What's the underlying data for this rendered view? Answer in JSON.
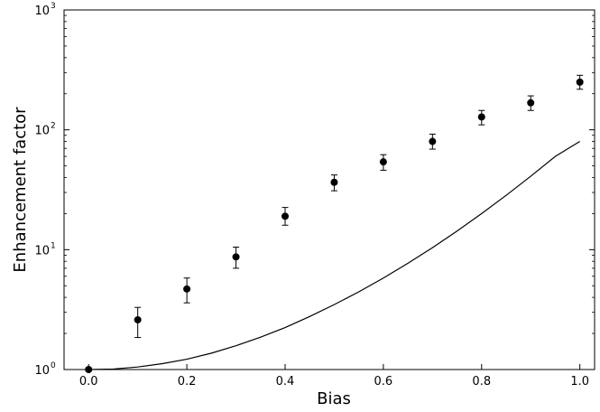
{
  "chart_data": {
    "type": "scatter",
    "title": "",
    "xlabel": "Bias",
    "ylabel": "Enhancement factor",
    "xlim": [
      -0.05,
      1.03
    ],
    "ylim": [
      1,
      1000
    ],
    "yscale": "log",
    "grid": false,
    "x_ticks": [
      {
        "value": 0.0,
        "label": "0.0"
      },
      {
        "value": 0.2,
        "label": "0.2"
      },
      {
        "value": 0.4,
        "label": "0.4"
      },
      {
        "value": 0.6,
        "label": "0.6"
      },
      {
        "value": 0.8,
        "label": "0.8"
      },
      {
        "value": 1.0,
        "label": "1.0"
      }
    ],
    "y_ticks": [
      {
        "value": 1,
        "base": "10",
        "exponent": "0"
      },
      {
        "value": 10,
        "base": "10",
        "exponent": "1"
      },
      {
        "value": 100,
        "base": "10",
        "exponent": "2"
      },
      {
        "value": 1000,
        "base": "10",
        "exponent": "3"
      }
    ],
    "series": [
      {
        "type": "scatter",
        "color": "#000000",
        "points": [
          {
            "x": 0.0,
            "y": 1.0,
            "lo": 1.0,
            "hi": 1.0
          },
          {
            "x": 0.1,
            "y": 2.6,
            "lo": 1.85,
            "hi": 3.3
          },
          {
            "x": 0.2,
            "y": 4.7,
            "lo": 3.6,
            "hi": 5.8
          },
          {
            "x": 0.3,
            "y": 8.7,
            "lo": 7.0,
            "hi": 10.5
          },
          {
            "x": 0.4,
            "y": 19.0,
            "lo": 16.0,
            "hi": 22.5
          },
          {
            "x": 0.5,
            "y": 36.5,
            "lo": 31.0,
            "hi": 42.0
          },
          {
            "x": 0.6,
            "y": 54.0,
            "lo": 46.0,
            "hi": 62.0
          },
          {
            "x": 0.7,
            "y": 80.0,
            "lo": 69.0,
            "hi": 92.0
          },
          {
            "x": 0.8,
            "y": 128.0,
            "lo": 110.0,
            "hi": 145.0
          },
          {
            "x": 0.9,
            "y": 168.0,
            "lo": 145.0,
            "hi": 192.0
          },
          {
            "x": 1.0,
            "y": 250.0,
            "lo": 218.0,
            "hi": 285.0
          }
        ]
      },
      {
        "type": "line",
        "color": "#000000",
        "x": [
          0.0,
          0.05,
          0.1,
          0.15,
          0.2,
          0.25,
          0.3,
          0.35,
          0.4,
          0.45,
          0.5,
          0.55,
          0.6,
          0.65,
          0.7,
          0.75,
          0.8,
          0.85,
          0.9,
          0.95,
          1.0
        ],
        "y": [
          1.0,
          1.01,
          1.05,
          1.12,
          1.22,
          1.37,
          1.58,
          1.86,
          2.24,
          2.77,
          3.48,
          4.45,
          5.8,
          7.7,
          10.4,
          14.3,
          20.0,
          28.4,
          41.0,
          60.0,
          80.0
        ]
      }
    ]
  }
}
